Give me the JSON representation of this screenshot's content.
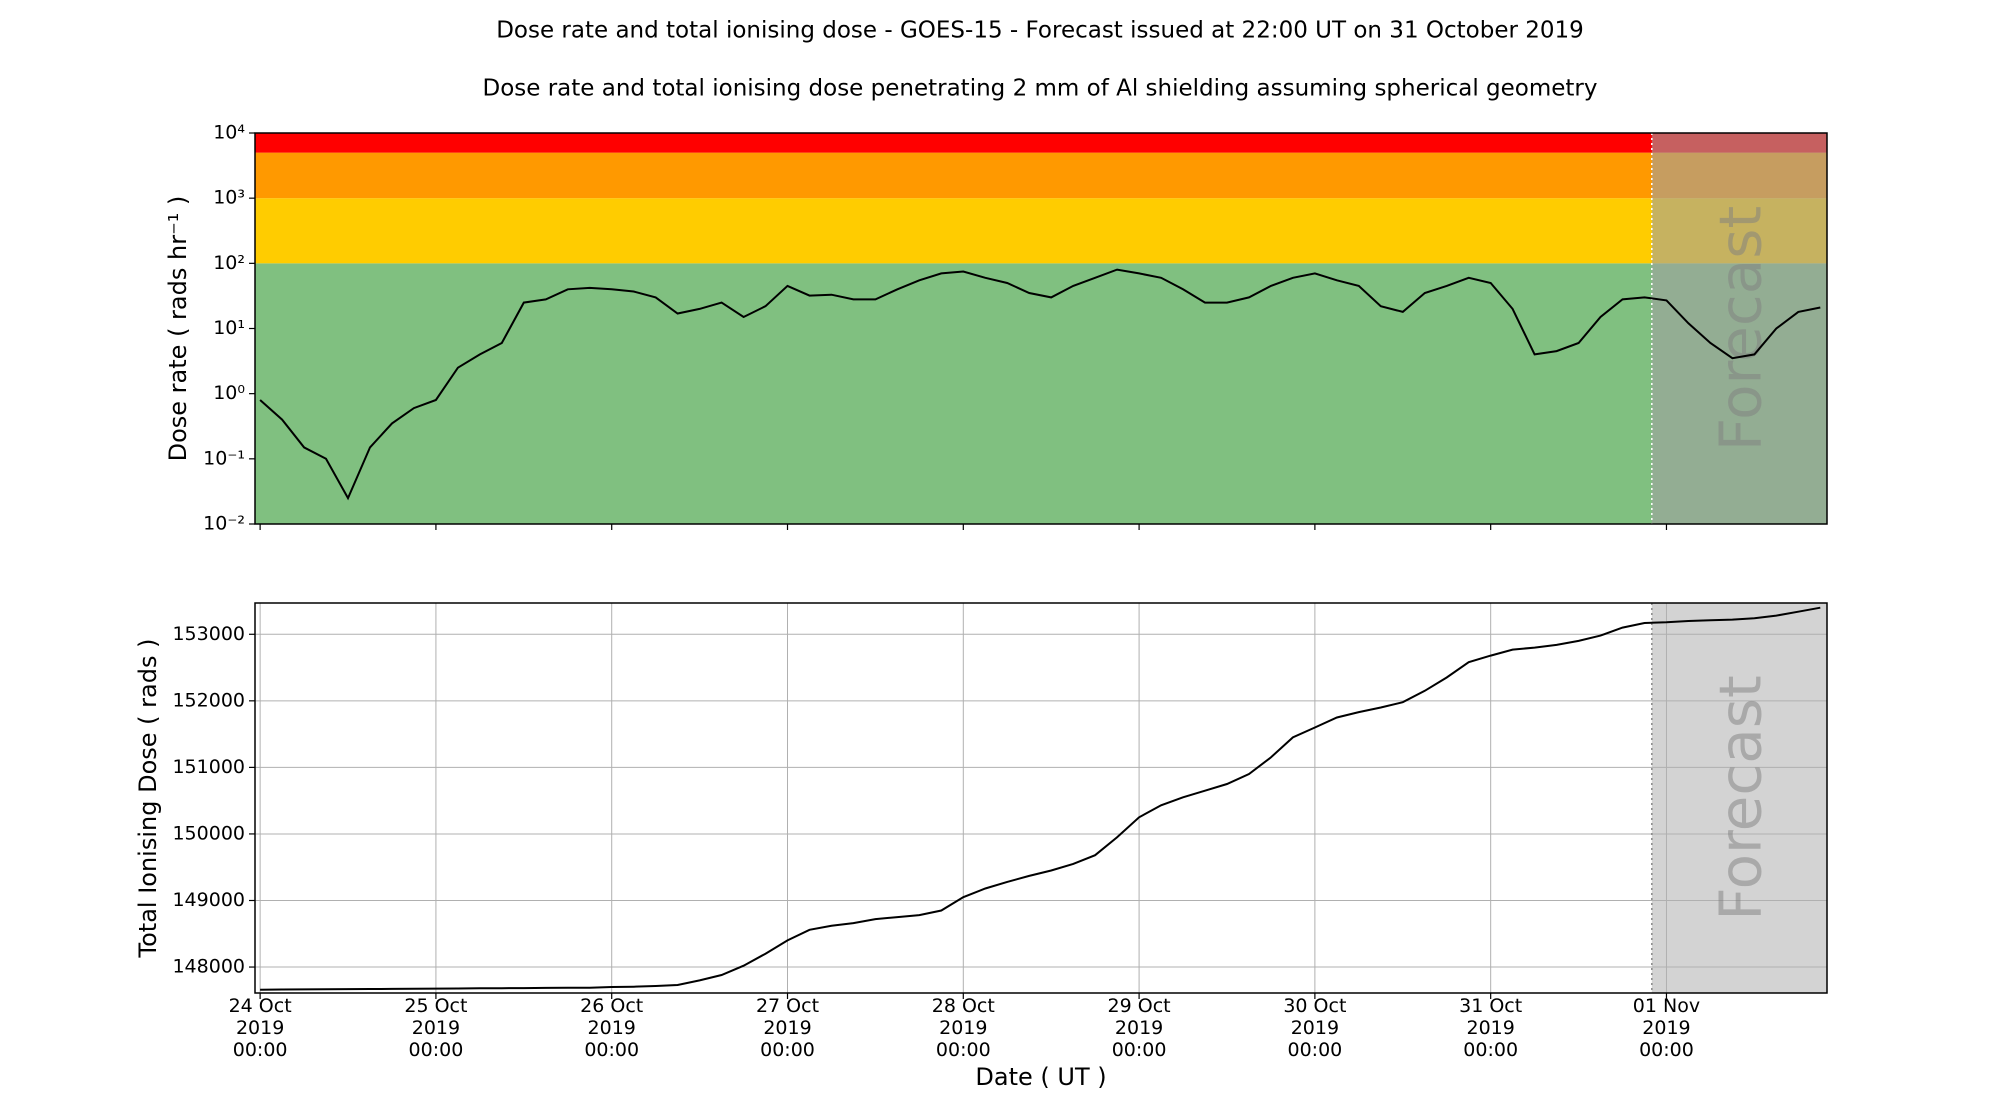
{
  "chart_data": [
    {
      "type": "line",
      "title": "Dose rate and total ionising dose - GOES-15 - Forecast issued at 22:00 UT on 31 October 2019",
      "subtitle": "Dose rate and total ionising dose penetrating 2 mm of Al shielding assuming spherical geometry",
      "y_label": "Dose rate ( rads hr⁻¹ )",
      "yscale": "log",
      "xlim": [
        "2019-10-23T23:18",
        "2019-11-01T21:55"
      ],
      "ylim": [
        0.01,
        10000
      ],
      "yticks": [
        {
          "value": 0.01,
          "label": "10⁻²"
        },
        {
          "value": 0.1,
          "label": "10⁻¹"
        },
        {
          "value": 1,
          "label": "10⁰"
        },
        {
          "value": 10,
          "label": "10¹"
        },
        {
          "value": 100,
          "label": "10²"
        },
        {
          "value": 1000,
          "label": "10³"
        },
        {
          "value": 10000,
          "label": "10⁴"
        }
      ],
      "bands": [
        {
          "from": 0.01,
          "to": 100,
          "color": "#80c080"
        },
        {
          "from": 100,
          "to": 1000,
          "color": "#ffcc00"
        },
        {
          "from": 1000,
          "to": 5000,
          "color": "#ff9900"
        },
        {
          "from": 5000,
          "to": 10000,
          "color": "#ff0000"
        }
      ],
      "forecast_start": "2019-10-31T22:00",
      "forecast_label": "Forecast",
      "forecast_color": "#a0a0a0",
      "forecast_opacity": 0.6,
      "grid": false,
      "color": "#000000",
      "x": [
        "2019-10-24T00:00",
        "2019-10-24T03:00",
        "2019-10-24T06:00",
        "2019-10-24T09:00",
        "2019-10-24T12:00",
        "2019-10-24T15:00",
        "2019-10-24T18:00",
        "2019-10-24T21:00",
        "2019-10-25T00:00",
        "2019-10-25T03:00",
        "2019-10-25T06:00",
        "2019-10-25T09:00",
        "2019-10-25T12:00",
        "2019-10-25T15:00",
        "2019-10-25T18:00",
        "2019-10-25T21:00",
        "2019-10-26T00:00",
        "2019-10-26T03:00",
        "2019-10-26T06:00",
        "2019-10-26T09:00",
        "2019-10-26T12:00",
        "2019-10-26T15:00",
        "2019-10-26T18:00",
        "2019-10-26T21:00",
        "2019-10-27T00:00",
        "2019-10-27T03:00",
        "2019-10-27T06:00",
        "2019-10-27T09:00",
        "2019-10-27T12:00",
        "2019-10-27T15:00",
        "2019-10-27T18:00",
        "2019-10-27T21:00",
        "2019-10-28T00:00",
        "2019-10-28T03:00",
        "2019-10-28T06:00",
        "2019-10-28T09:00",
        "2019-10-28T12:00",
        "2019-10-28T15:00",
        "2019-10-28T18:00",
        "2019-10-28T21:00",
        "2019-10-29T00:00",
        "2019-10-29T03:00",
        "2019-10-29T06:00",
        "2019-10-29T09:00",
        "2019-10-29T12:00",
        "2019-10-29T15:00",
        "2019-10-29T18:00",
        "2019-10-29T21:00",
        "2019-10-30T00:00",
        "2019-10-30T03:00",
        "2019-10-30T06:00",
        "2019-10-30T09:00",
        "2019-10-30T12:00",
        "2019-10-30T15:00",
        "2019-10-30T18:00",
        "2019-10-30T21:00",
        "2019-10-31T00:00",
        "2019-10-31T03:00",
        "2019-10-31T06:00",
        "2019-10-31T09:00",
        "2019-10-31T12:00",
        "2019-10-31T15:00",
        "2019-10-31T18:00",
        "2019-10-31T21:00",
        "2019-11-01T00:00",
        "2019-11-01T03:00",
        "2019-11-01T06:00",
        "2019-11-01T09:00",
        "2019-11-01T12:00",
        "2019-11-01T15:00",
        "2019-11-01T18:00",
        "2019-11-01T21:00"
      ],
      "values": [
        0.8,
        0.4,
        0.15,
        0.1,
        0.025,
        0.15,
        0.35,
        0.6,
        0.8,
        2.5,
        4,
        6,
        25,
        28,
        40,
        42,
        40,
        37,
        30,
        17,
        20,
        25,
        15,
        22,
        45,
        32,
        33,
        28,
        28,
        40,
        55,
        70,
        75,
        60,
        50,
        35,
        30,
        45,
        60,
        80,
        70,
        60,
        40,
        25,
        25,
        30,
        45,
        60,
        70,
        55,
        45,
        22,
        18,
        35,
        45,
        60,
        50,
        20,
        4,
        4.5,
        6,
        15,
        28,
        30,
        27,
        12,
        6,
        3.5,
        4,
        10,
        18,
        21
      ]
    },
    {
      "type": "line",
      "y_label": "Total Ionising Dose ( rads )",
      "x_label": "Date ( UT )",
      "yscale": "linear",
      "xlim": [
        "2019-10-23T23:18",
        "2019-11-01T21:55"
      ],
      "ylim": [
        147610,
        153470
      ],
      "yticks": [
        148000,
        149000,
        150000,
        151000,
        152000,
        153000
      ],
      "xticks": [
        {
          "value": "2019-10-24T00:00",
          "label": "24 Oct\n2019\n00:00"
        },
        {
          "value": "2019-10-25T00:00",
          "label": "25 Oct\n2019\n00:00"
        },
        {
          "value": "2019-10-26T00:00",
          "label": "26 Oct\n2019\n00:00"
        },
        {
          "value": "2019-10-27T00:00",
          "label": "27 Oct\n2019\n00:00"
        },
        {
          "value": "2019-10-28T00:00",
          "label": "28 Oct\n2019\n00:00"
        },
        {
          "value": "2019-10-29T00:00",
          "label": "29 Oct\n2019\n00:00"
        },
        {
          "value": "2019-10-30T00:00",
          "label": "30 Oct\n2019\n00:00"
        },
        {
          "value": "2019-10-31T00:00",
          "label": "31 Oct\n2019\n00:00"
        },
        {
          "value": "2019-11-01T00:00",
          "label": "01 Nov\n2019\n00:00"
        }
      ],
      "forecast_start": "2019-10-31T22:00",
      "forecast_label": "Forecast",
      "forecast_color": "#d3d3d3",
      "forecast_opacity": 1,
      "grid": true,
      "color": "#000000",
      "x": [
        "2019-10-24T00:00",
        "2019-10-24T03:00",
        "2019-10-24T06:00",
        "2019-10-24T09:00",
        "2019-10-24T12:00",
        "2019-10-24T15:00",
        "2019-10-24T18:00",
        "2019-10-24T21:00",
        "2019-10-25T00:00",
        "2019-10-25T03:00",
        "2019-10-25T06:00",
        "2019-10-25T09:00",
        "2019-10-25T12:00",
        "2019-10-25T15:00",
        "2019-10-25T18:00",
        "2019-10-25T21:00",
        "2019-10-26T00:00",
        "2019-10-26T03:00",
        "2019-10-26T06:00",
        "2019-10-26T09:00",
        "2019-10-26T12:00",
        "2019-10-26T15:00",
        "2019-10-26T18:00",
        "2019-10-26T21:00",
        "2019-10-27T00:00",
        "2019-10-27T03:00",
        "2019-10-27T06:00",
        "2019-10-27T09:00",
        "2019-10-27T12:00",
        "2019-10-27T15:00",
        "2019-10-27T18:00",
        "2019-10-27T21:00",
        "2019-10-28T00:00",
        "2019-10-28T03:00",
        "2019-10-28T06:00",
        "2019-10-28T09:00",
        "2019-10-28T12:00",
        "2019-10-28T15:00",
        "2019-10-28T18:00",
        "2019-10-28T21:00",
        "2019-10-29T00:00",
        "2019-10-29T03:00",
        "2019-10-29T06:00",
        "2019-10-29T09:00",
        "2019-10-29T12:00",
        "2019-10-29T15:00",
        "2019-10-29T18:00",
        "2019-10-29T21:00",
        "2019-10-30T00:00",
        "2019-10-30T03:00",
        "2019-10-30T06:00",
        "2019-10-30T09:00",
        "2019-10-30T12:00",
        "2019-10-30T15:00",
        "2019-10-30T18:00",
        "2019-10-30T21:00",
        "2019-10-31T00:00",
        "2019-10-31T03:00",
        "2019-10-31T06:00",
        "2019-10-31T09:00",
        "2019-10-31T12:00",
        "2019-10-31T15:00",
        "2019-10-31T18:00",
        "2019-10-31T21:00",
        "2019-11-01T00:00",
        "2019-11-01T03:00",
        "2019-11-01T06:00",
        "2019-11-01T09:00",
        "2019-11-01T12:00",
        "2019-11-01T15:00",
        "2019-11-01T18:00",
        "2019-11-01T21:00"
      ],
      "values": [
        147660,
        147662,
        147664,
        147666,
        147668,
        147670,
        147672,
        147674,
        147676,
        147678,
        147680,
        147682,
        147684,
        147686,
        147688,
        147690,
        147700,
        147705,
        147715,
        147730,
        147800,
        147880,
        148020,
        148200,
        148400,
        148560,
        148620,
        148660,
        148720,
        148750,
        148780,
        148850,
        149050,
        149180,
        149280,
        149370,
        149450,
        149550,
        149680,
        149950,
        150250,
        150430,
        150550,
        150650,
        150750,
        150900,
        151150,
        151450,
        151600,
        151750,
        151830,
        151900,
        151980,
        152150,
        152350,
        152580,
        152680,
        152770,
        152800,
        152840,
        152900,
        152980,
        153100,
        153170,
        153180,
        153200,
        153210,
        153220,
        153240,
        153280,
        153340,
        153400
      ]
    }
  ]
}
